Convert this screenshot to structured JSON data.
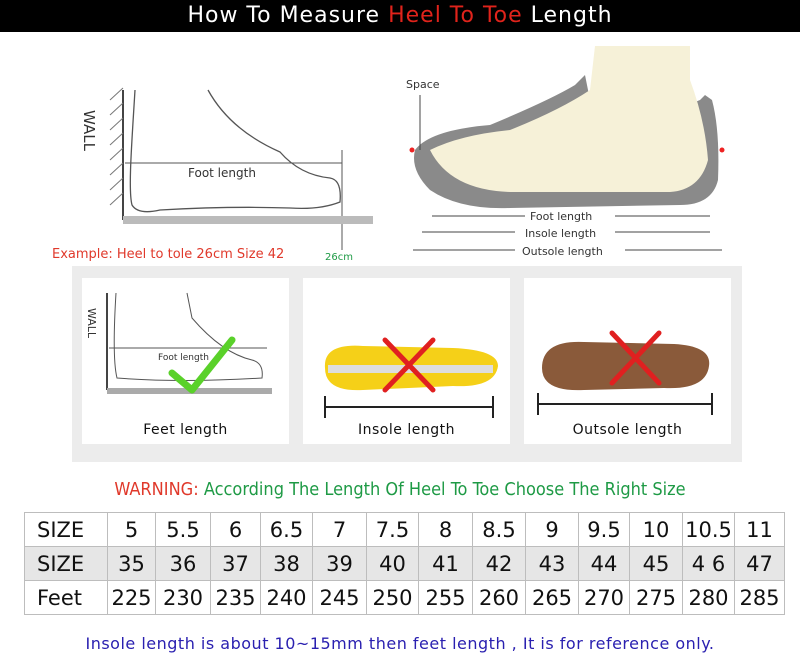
{
  "title": {
    "part1": "How To Measure ",
    "highlight": "Heel To Toe",
    "part2": " Length"
  },
  "left_diagram": {
    "wall_label": "WALL",
    "foot_length_label": "Foot length",
    "example": "Example: Heel to tole 26cm Size 42",
    "measure_mark": "26cm"
  },
  "right_diagram": {
    "space_label": "Space",
    "foot_length": "Foot length",
    "insole_length": "Insole length",
    "outsole_length": "Outsole length"
  },
  "cards": [
    {
      "caption": "Feet length",
      "status": "correct",
      "icon": "check-icon",
      "wall_label": "WALL",
      "foot_length_label": "Foot length"
    },
    {
      "caption": "Insole length",
      "status": "wrong",
      "icon": "cross-icon"
    },
    {
      "caption": "Outsole length",
      "status": "wrong",
      "icon": "cross-icon"
    }
  ],
  "warning": {
    "label": "WARNING:",
    "text": "According The Length Of Heel To Toe Choose The Right Size"
  },
  "size_table": {
    "rows": [
      {
        "header": "SIZE",
        "values": [
          "5",
          "5.5",
          "6",
          "6.5",
          "7",
          "7.5",
          "8",
          "8.5",
          "9",
          "9.5",
          "10",
          "10.5",
          "11"
        ]
      },
      {
        "header": "SIZE",
        "values": [
          "35",
          "36",
          "37",
          "38",
          "39",
          "40",
          "41",
          "42",
          "43",
          "44",
          "45",
          "4 6",
          "47"
        ]
      },
      {
        "header": "Feet",
        "values": [
          "225",
          "230",
          "235",
          "240",
          "245",
          "250",
          "255",
          "260",
          "265",
          "270",
          "275",
          "280",
          "285"
        ]
      }
    ]
  },
  "footer_note": "Insole length is about 10~15mm then feet length , It is for reference only.",
  "colors": {
    "highlight_red": "#e0231b",
    "warning_green": "#1e9a45",
    "note_blue": "#2a20b0",
    "check_green": "#5ad12a",
    "cross_red": "#e02020"
  }
}
